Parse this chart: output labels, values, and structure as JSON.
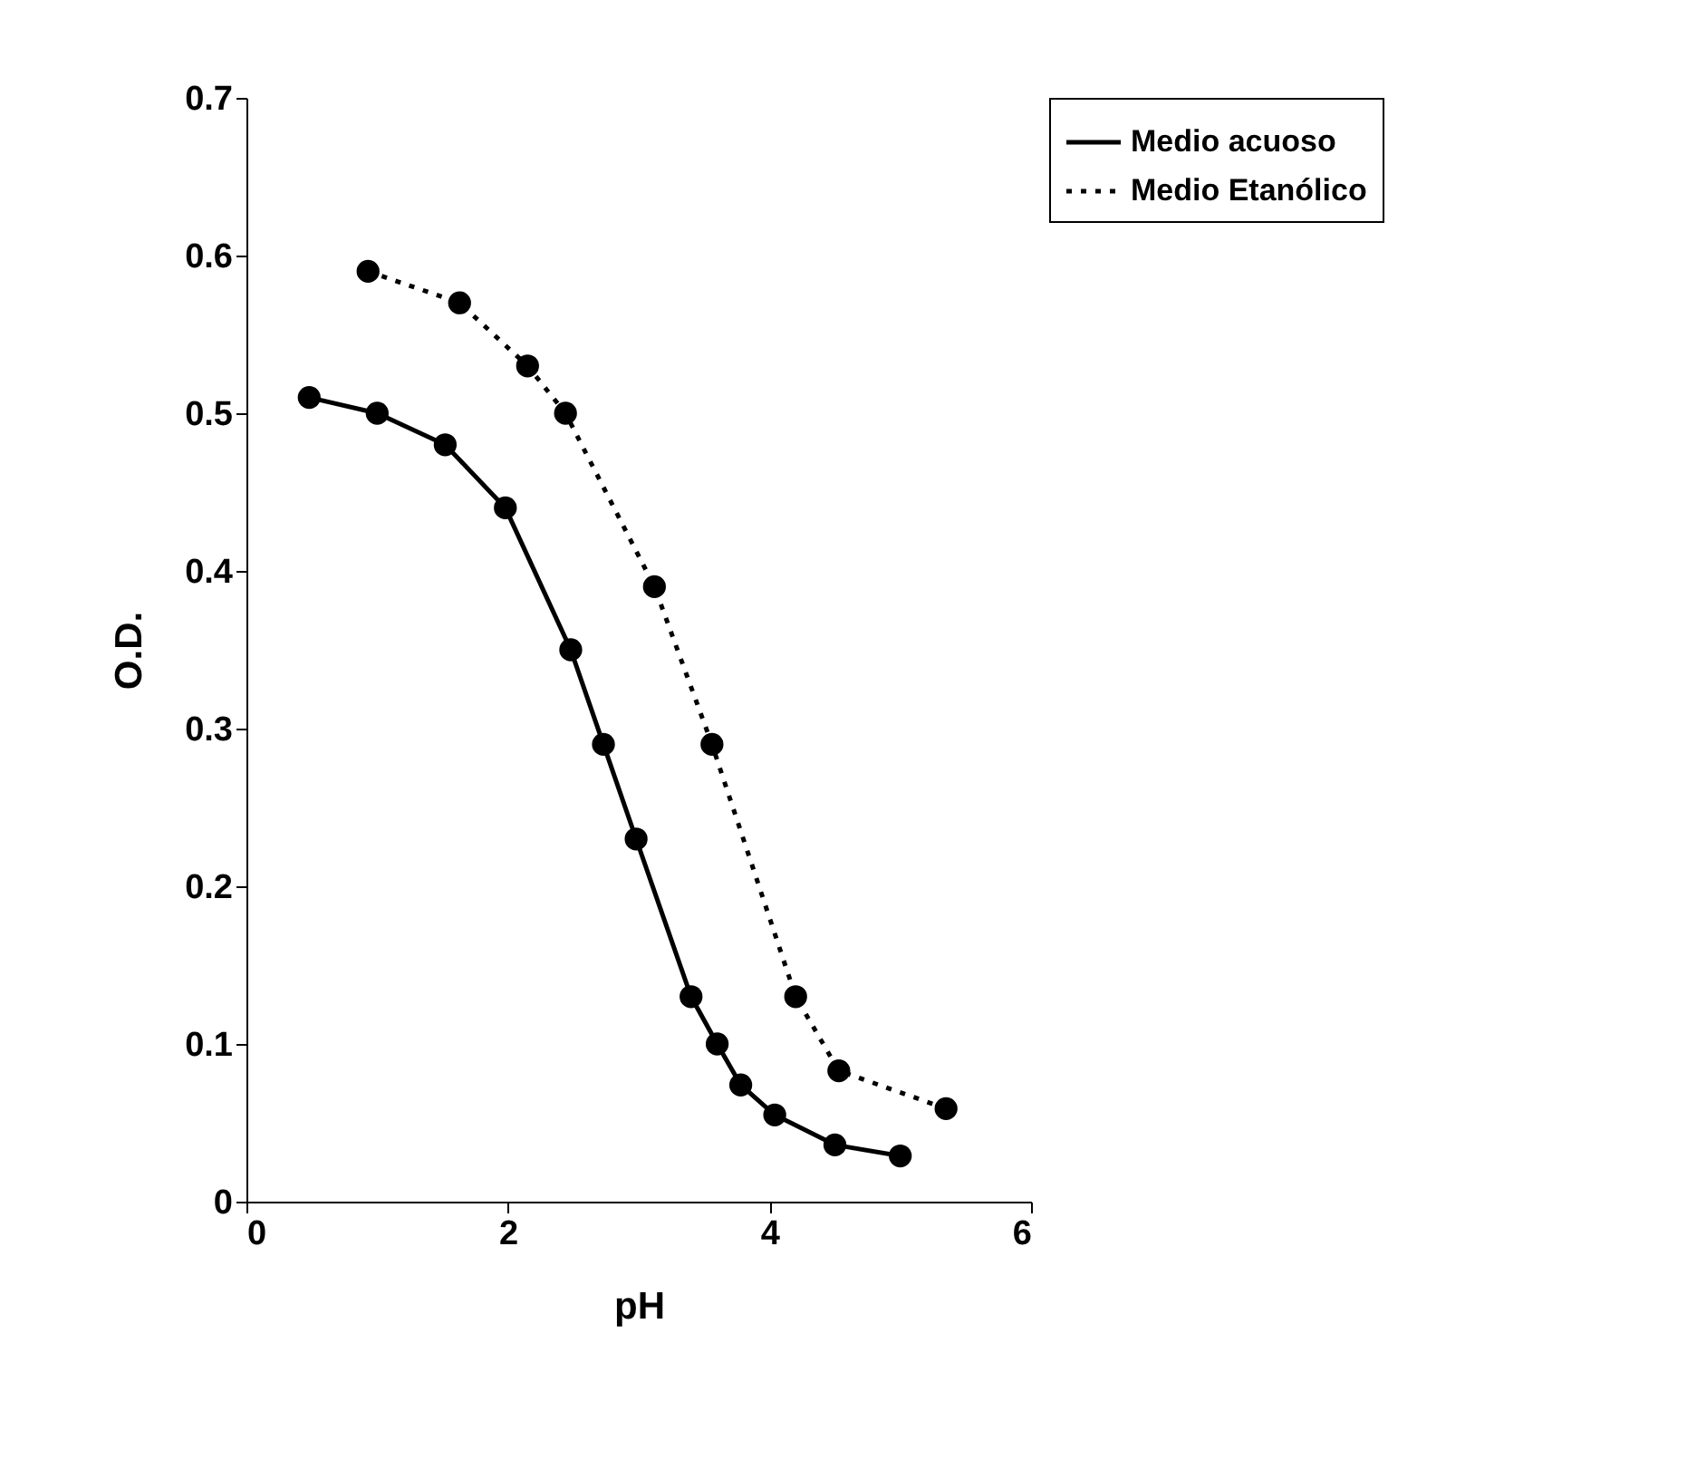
{
  "chart_data": {
    "type": "line",
    "xlabel": "pH",
    "ylabel": "O.D.",
    "xlim": [
      0,
      6
    ],
    "xticks": [
      0,
      2,
      4,
      6
    ],
    "ylim": [
      0,
      0.7
    ],
    "yticks": [
      0,
      0.1,
      0.2,
      0.3,
      0.4,
      0.5,
      0.6,
      0.7
    ],
    "grid": false,
    "legend": "right",
    "marker": "circle",
    "series": [
      {
        "name": "Medio acuoso",
        "color": "#000000",
        "line_style": "solid",
        "x": [
          0.48,
          1.0,
          1.52,
          1.98,
          2.48,
          2.73,
          2.98,
          3.4,
          3.6,
          3.78,
          4.04,
          4.5,
          5.0
        ],
        "values": [
          0.51,
          0.5,
          0.48,
          0.44,
          0.35,
          0.29,
          0.23,
          0.13,
          0.1,
          0.074,
          0.055,
          0.036,
          0.029
        ]
      },
      {
        "name": "Medio Etanólico",
        "color": "#000000",
        "line_style": "dotted",
        "x": [
          0.93,
          1.63,
          2.15,
          2.44,
          3.12,
          3.56,
          4.2,
          4.53,
          5.35
        ],
        "values": [
          0.59,
          0.57,
          0.53,
          0.5,
          0.39,
          0.29,
          0.13,
          0.083,
          0.059
        ]
      }
    ]
  }
}
